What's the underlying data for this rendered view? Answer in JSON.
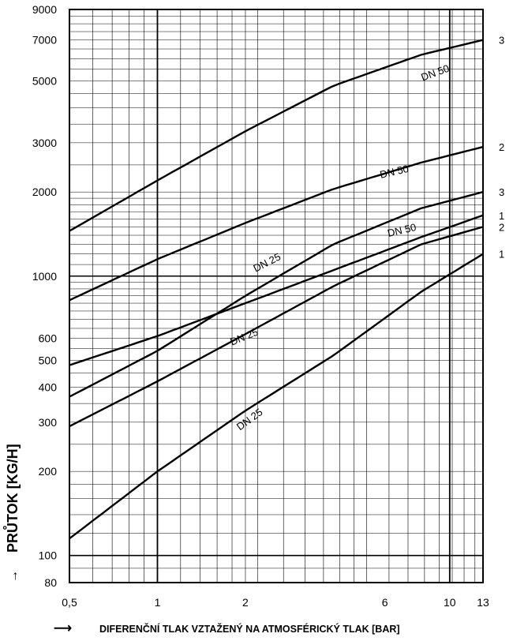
{
  "chart_data": {
    "type": "line",
    "title": "",
    "xlabel": "DIFERENČNÍ TLAK VZTAŽENÝ NA ATMOSFÉRICKÝ TLAK [BAR]",
    "ylabel": "PRŮTOK [KG/H]",
    "xscale": "log",
    "yscale": "log",
    "xlim": [
      0.5,
      13
    ],
    "ylim": [
      80,
      9000
    ],
    "grid": true,
    "x_ticks": [
      {
        "value": 0.5,
        "label": "0,5"
      },
      {
        "value": 1,
        "label": "1"
      },
      {
        "value": 2,
        "label": "2"
      },
      {
        "value": 6,
        "label": "6"
      },
      {
        "value": 10,
        "label": "10"
      },
      {
        "value": 13,
        "label": "13"
      }
    ],
    "y_ticks": [
      {
        "value": 80,
        "label": "80"
      },
      {
        "value": 100,
        "label": "100"
      },
      {
        "value": 200,
        "label": "200"
      },
      {
        "value": 300,
        "label": "300"
      },
      {
        "value": 400,
        "label": "400"
      },
      {
        "value": 500,
        "label": "500"
      },
      {
        "value": 600,
        "label": "600"
      },
      {
        "value": 1000,
        "label": "1000"
      },
      {
        "value": 2000,
        "label": "2000"
      },
      {
        "value": 3000,
        "label": "3000"
      },
      {
        "value": 5000,
        "label": "5000"
      },
      {
        "value": 7000,
        "label": "7000"
      },
      {
        "value": 9000,
        "label": "9000"
      }
    ],
    "series": [
      {
        "label": "DN 50",
        "end_label": "3",
        "x": [
          0.5,
          1,
          2,
          4,
          8,
          13
        ],
        "y": [
          1450,
          2200,
          3300,
          4800,
          6200,
          7000
        ]
      },
      {
        "label": "DN 50",
        "end_label": "2",
        "x": [
          0.5,
          1,
          2,
          4,
          8,
          13
        ],
        "y": [
          820,
          1150,
          1550,
          2050,
          2550,
          2900
        ]
      },
      {
        "label": "DN 50",
        "end_label": "1",
        "x": [
          0.5,
          1,
          2,
          4,
          8,
          13
        ],
        "y": [
          480,
          610,
          800,
          1050,
          1380,
          1650
        ]
      },
      {
        "label": "DN 25",
        "end_label": "3",
        "x": [
          0.5,
          1,
          2,
          4,
          8,
          13
        ],
        "y": [
          370,
          540,
          850,
          1300,
          1750,
          2000
        ]
      },
      {
        "label": "DN 25",
        "end_label": "2",
        "x": [
          0.5,
          1,
          2,
          4,
          8,
          13
        ],
        "y": [
          290,
          420,
          620,
          920,
          1300,
          1500
        ]
      },
      {
        "label": "DN 25",
        "end_label": "1",
        "x": [
          0.5,
          1,
          2,
          4,
          8,
          13
        ],
        "y": [
          115,
          200,
          330,
          520,
          880,
          1200
        ]
      }
    ],
    "curve_labels": [
      {
        "text": "DN 50",
        "x": 9.0,
        "y": 5200,
        "angle": -20
      },
      {
        "text": "DN 50",
        "x": 6.5,
        "y": 2300,
        "angle": -13
      },
      {
        "text": "DN 50",
        "x": 6.9,
        "y": 1420,
        "angle": -13
      },
      {
        "text": "DN 25",
        "x": 2.4,
        "y": 1090,
        "angle": -27
      },
      {
        "text": "DN 25",
        "x": 2.0,
        "y": 590,
        "angle": -22
      },
      {
        "text": "DN 25",
        "x": 2.1,
        "y": 300,
        "angle": -36
      }
    ]
  }
}
